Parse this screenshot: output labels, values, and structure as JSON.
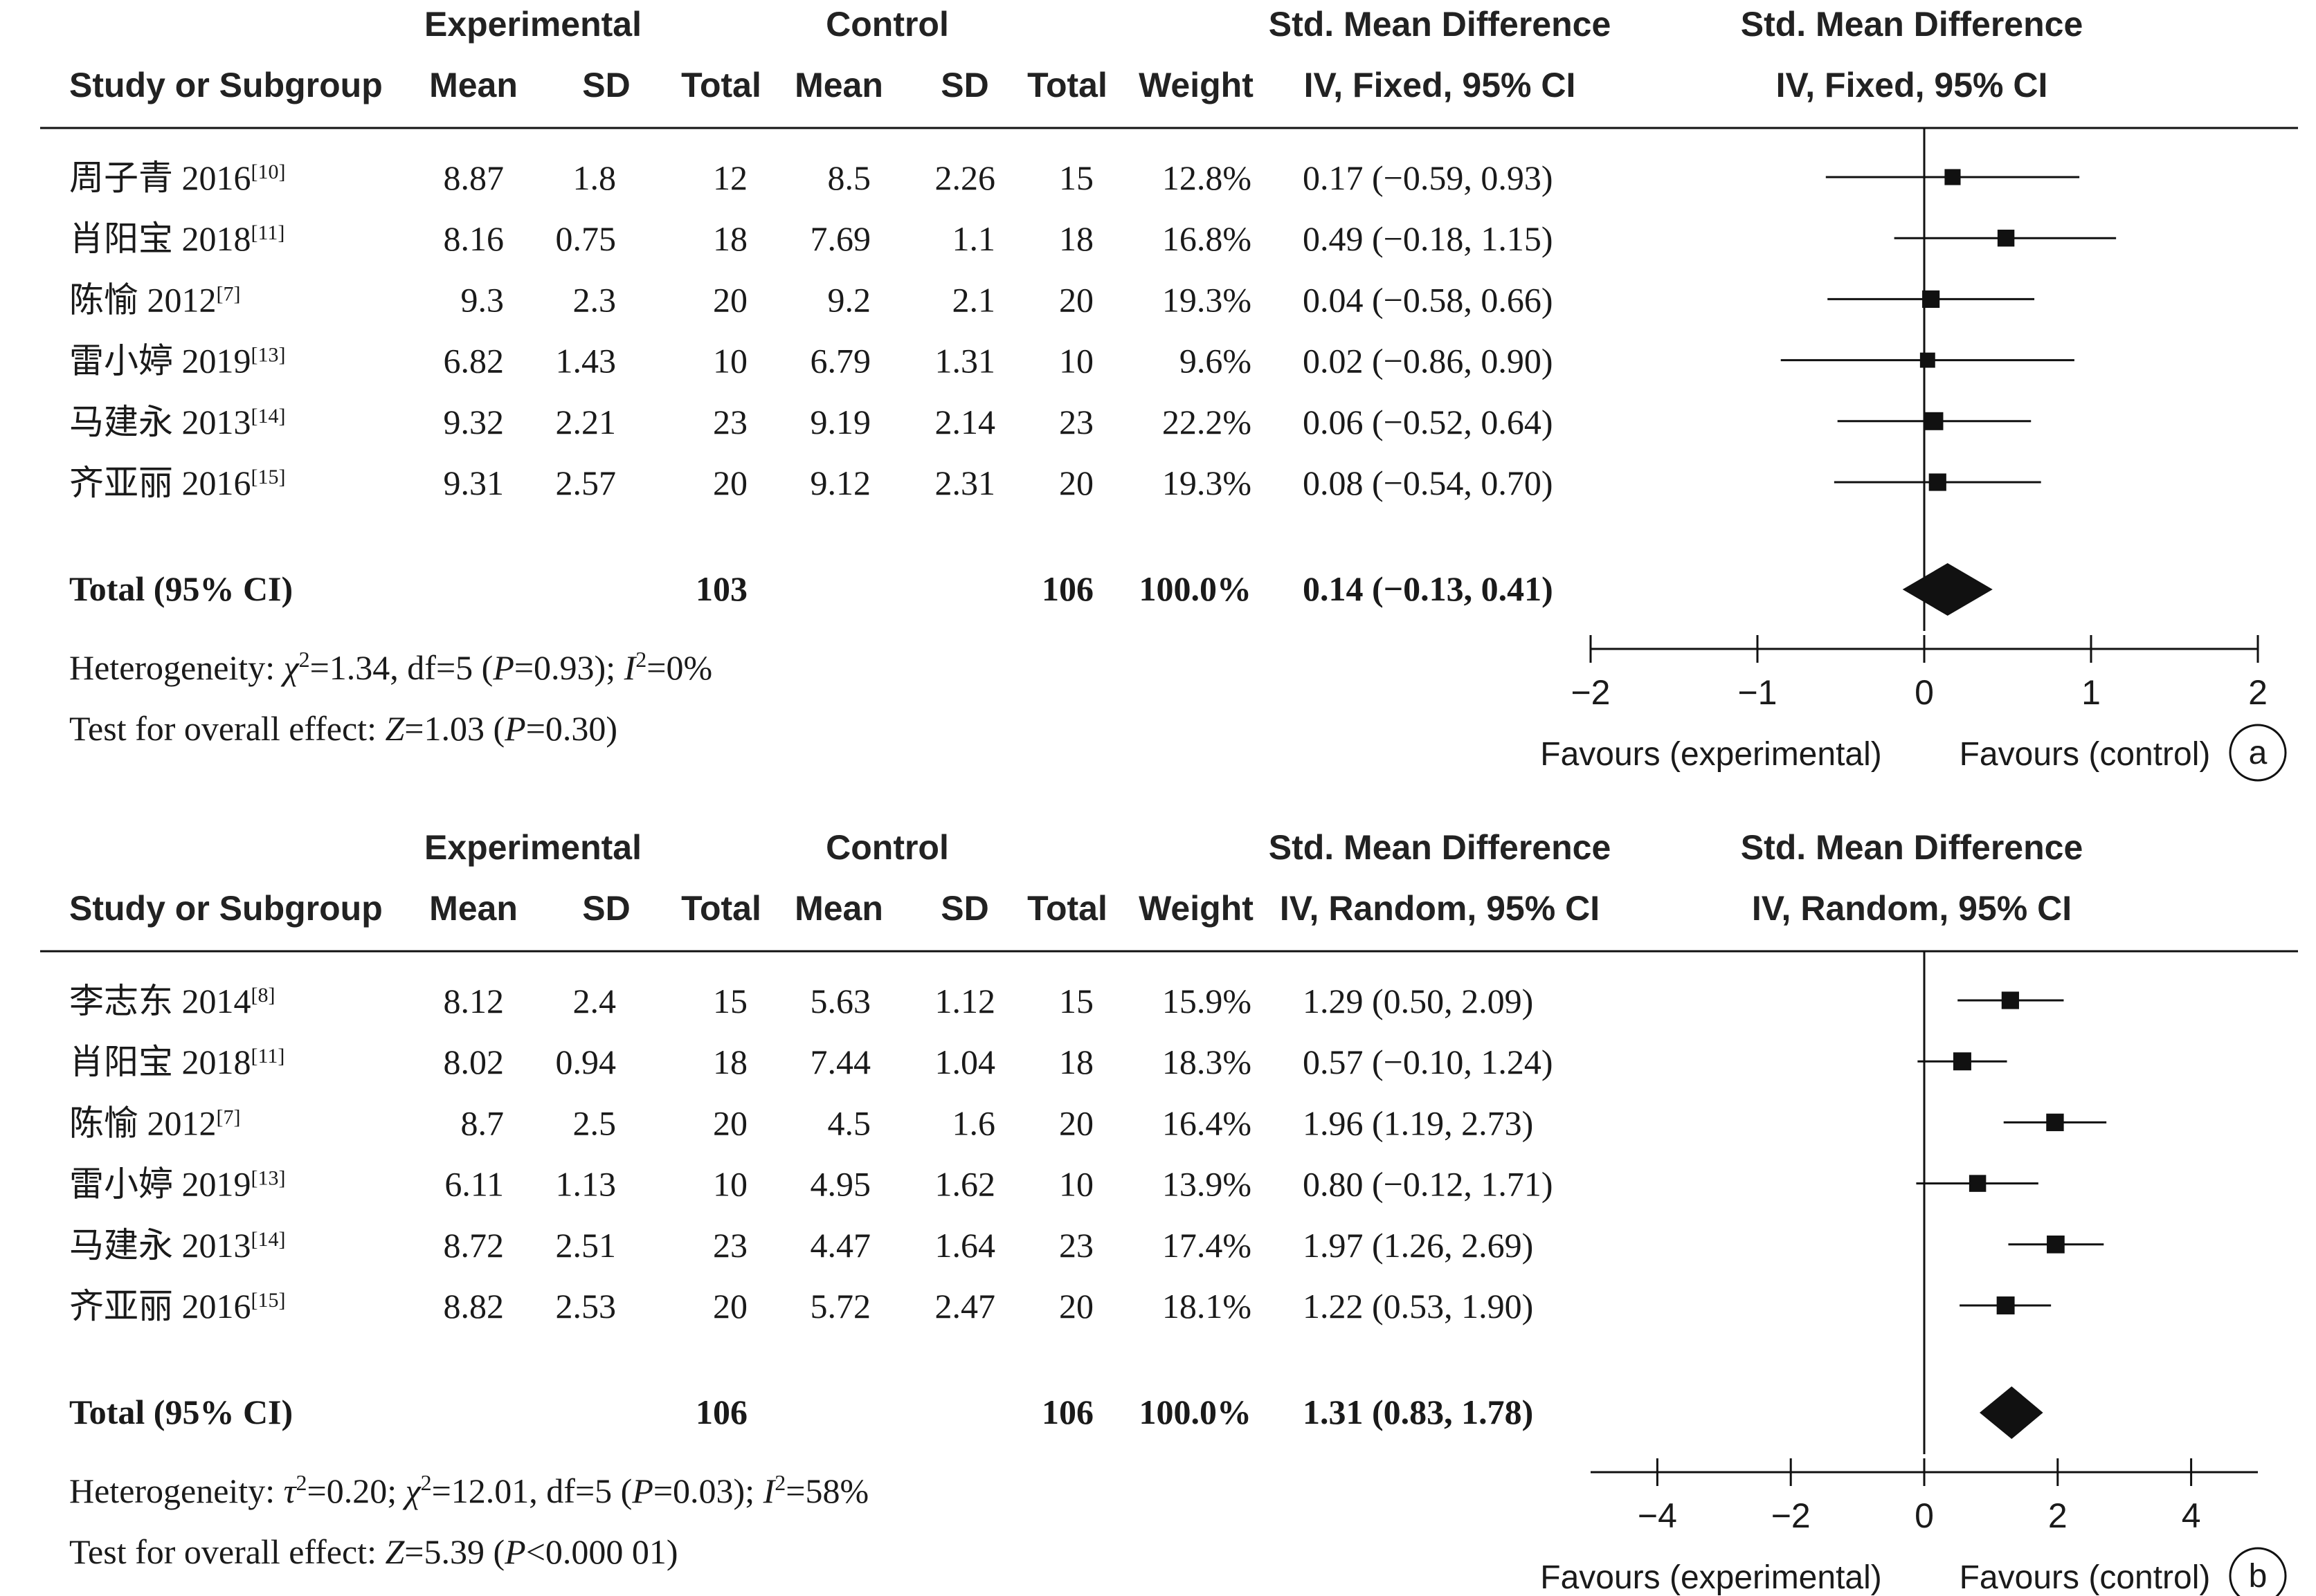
{
  "columns": {
    "study": "Study or Subgroup",
    "experimental": "Experimental",
    "control": "Control",
    "mean": "Mean",
    "sd": "SD",
    "total": "Total",
    "weight": "Weight",
    "smd": "Std. Mean Difference"
  },
  "chart_data": [
    {
      "type": "forest",
      "panel_label": "a",
      "method_label": "IV, Fixed, 95% CI",
      "xlim": [
        -2,
        2
      ],
      "ticks": [
        -2,
        -1,
        0,
        1,
        2
      ],
      "tick_labels": [
        "−2",
        "−1",
        "0",
        "1",
        "2"
      ],
      "favours_left": "Favours (experimental)",
      "favours_right": "Favours (control)",
      "studies": [
        {
          "name": "周子青 2016",
          "ref": "[10]",
          "exp_mean": "8.87",
          "exp_sd": "1.8",
          "exp_total": "12",
          "ctl_mean": "8.5",
          "ctl_sd": "2.26",
          "ctl_total": "15",
          "weight": "12.8%",
          "smd_text": "0.17 (−0.59, 0.93)",
          "smd": 0.17,
          "lo": -0.59,
          "hi": 0.93
        },
        {
          "name": "肖阳宝 2018",
          "ref": "[11]",
          "exp_mean": "8.16",
          "exp_sd": "0.75",
          "exp_total": "18",
          "ctl_mean": "7.69",
          "ctl_sd": "1.1",
          "ctl_total": "18",
          "weight": "16.8%",
          "smd_text": "0.49 (−0.18, 1.15)",
          "smd": 0.49,
          "lo": -0.18,
          "hi": 1.15
        },
        {
          "name": "陈愉 2012",
          "ref": "[7]",
          "exp_mean": "9.3",
          "exp_sd": "2.3",
          "exp_total": "20",
          "ctl_mean": "9.2",
          "ctl_sd": "2.1",
          "ctl_total": "20",
          "weight": "19.3%",
          "smd_text": "0.04 (−0.58, 0.66)",
          "smd": 0.04,
          "lo": -0.58,
          "hi": 0.66
        },
        {
          "name": "雷小婷 2019",
          "ref": "[13]",
          "exp_mean": "6.82",
          "exp_sd": "1.43",
          "exp_total": "10",
          "ctl_mean": "6.79",
          "ctl_sd": "1.31",
          "ctl_total": "10",
          "weight": "9.6%",
          "smd_text": "0.02 (−0.86, 0.90)",
          "smd": 0.02,
          "lo": -0.86,
          "hi": 0.9
        },
        {
          "name": "马建永 2013",
          "ref": "[14]",
          "exp_mean": "9.32",
          "exp_sd": "2.21",
          "exp_total": "23",
          "ctl_mean": "9.19",
          "ctl_sd": "2.14",
          "ctl_total": "23",
          "weight": "22.2%",
          "smd_text": "0.06 (−0.52, 0.64)",
          "smd": 0.06,
          "lo": -0.52,
          "hi": 0.64
        },
        {
          "name": "齐亚丽 2016",
          "ref": "[15]",
          "exp_mean": "9.31",
          "exp_sd": "2.57",
          "exp_total": "20",
          "ctl_mean": "9.12",
          "ctl_sd": "2.31",
          "ctl_total": "20",
          "weight": "19.3%",
          "smd_text": "0.08 (−0.54, 0.70)",
          "smd": 0.08,
          "lo": -0.54,
          "hi": 0.7
        }
      ],
      "total": {
        "label": "Total (95% CI)",
        "exp_total": "103",
        "ctl_total": "106",
        "weight": "100.0%",
        "smd_text": "0.14 (−0.13, 0.41)",
        "smd": 0.14,
        "lo": -0.13,
        "hi": 0.41
      },
      "heterogeneity": [
        {
          "t": "Heterogeneity: "
        },
        {
          "t": "χ",
          "i": true
        },
        {
          "t": "2",
          "sup": true
        },
        {
          "t": "=1.34, df=5 ("
        },
        {
          "t": "P",
          "i": true
        },
        {
          "t": "=0.93); "
        },
        {
          "t": "I",
          "i": true
        },
        {
          "t": "2",
          "sup": true
        },
        {
          "t": "=0%"
        }
      ],
      "overall": [
        {
          "t": "Test for overall effect: "
        },
        {
          "t": "Z",
          "i": true
        },
        {
          "t": "=1.03 ("
        },
        {
          "t": "P",
          "i": true
        },
        {
          "t": "=0.30)"
        }
      ]
    },
    {
      "type": "forest",
      "panel_label": "b",
      "method_label": "IV, Random, 95% CI",
      "xlim": [
        -5,
        5
      ],
      "ticks": [
        -4,
        -2,
        0,
        2,
        4
      ],
      "tick_labels": [
        "−4",
        "−2",
        "0",
        "2",
        "4"
      ],
      "favours_left": "Favours (experimental)",
      "favours_right": "Favours (control)",
      "studies": [
        {
          "name": "李志东 2014",
          "ref": "[8]",
          "exp_mean": "8.12",
          "exp_sd": "2.4",
          "exp_total": "15",
          "ctl_mean": "5.63",
          "ctl_sd": "1.12",
          "ctl_total": "15",
          "weight": "15.9%",
          "smd_text": "1.29 (0.50, 2.09)",
          "smd": 1.29,
          "lo": 0.5,
          "hi": 2.09
        },
        {
          "name": "肖阳宝 2018",
          "ref": "[11]",
          "exp_mean": "8.02",
          "exp_sd": "0.94",
          "exp_total": "18",
          "ctl_mean": "7.44",
          "ctl_sd": "1.04",
          "ctl_total": "18",
          "weight": "18.3%",
          "smd_text": "0.57 (−0.10, 1.24)",
          "smd": 0.57,
          "lo": -0.1,
          "hi": 1.24
        },
        {
          "name": "陈愉 2012",
          "ref": "[7]",
          "exp_mean": "8.7",
          "exp_sd": "2.5",
          "exp_total": "20",
          "ctl_mean": "4.5",
          "ctl_sd": "1.6",
          "ctl_total": "20",
          "weight": "16.4%",
          "smd_text": "1.96 (1.19, 2.73)",
          "smd": 1.96,
          "lo": 1.19,
          "hi": 2.73
        },
        {
          "name": "雷小婷 2019",
          "ref": "[13]",
          "exp_mean": "6.11",
          "exp_sd": "1.13",
          "exp_total": "10",
          "ctl_mean": "4.95",
          "ctl_sd": "1.62",
          "ctl_total": "10",
          "weight": "13.9%",
          "smd_text": "0.80 (−0.12, 1.71)",
          "smd": 0.8,
          "lo": -0.12,
          "hi": 1.71
        },
        {
          "name": "马建永 2013",
          "ref": "[14]",
          "exp_mean": "8.72",
          "exp_sd": "2.51",
          "exp_total": "23",
          "ctl_mean": "4.47",
          "ctl_sd": "1.64",
          "ctl_total": "23",
          "weight": "17.4%",
          "smd_text": "1.97 (1.26, 2.69)",
          "smd": 1.97,
          "lo": 1.26,
          "hi": 2.69
        },
        {
          "name": "齐亚丽 2016",
          "ref": "[15]",
          "exp_mean": "8.82",
          "exp_sd": "2.53",
          "exp_total": "20",
          "ctl_mean": "5.72",
          "ctl_sd": "2.47",
          "ctl_total": "20",
          "weight": "18.1%",
          "smd_text": "1.22 (0.53, 1.90)",
          "smd": 1.22,
          "lo": 0.53,
          "hi": 1.9
        }
      ],
      "total": {
        "label": "Total (95% CI)",
        "exp_total": "106",
        "ctl_total": "106",
        "weight": "100.0%",
        "smd_text": "1.31 (0.83, 1.78)",
        "smd": 1.31,
        "lo": 0.83,
        "hi": 1.78
      },
      "heterogeneity": [
        {
          "t": "Heterogeneity: "
        },
        {
          "t": "τ",
          "i": true
        },
        {
          "t": "2",
          "sup": true
        },
        {
          "t": "=0.20; "
        },
        {
          "t": "χ",
          "i": true
        },
        {
          "t": "2",
          "sup": true
        },
        {
          "t": "=12.01, df=5 ("
        },
        {
          "t": "P",
          "i": true
        },
        {
          "t": "=0.03); "
        },
        {
          "t": "I",
          "i": true
        },
        {
          "t": "2",
          "sup": true
        },
        {
          "t": "=58%"
        }
      ],
      "overall": [
        {
          "t": "Test for overall effect: "
        },
        {
          "t": "Z",
          "i": true
        },
        {
          "t": "=5.39 ("
        },
        {
          "t": "P",
          "i": true
        },
        {
          "t": "<0.000 01)"
        }
      ]
    }
  ]
}
